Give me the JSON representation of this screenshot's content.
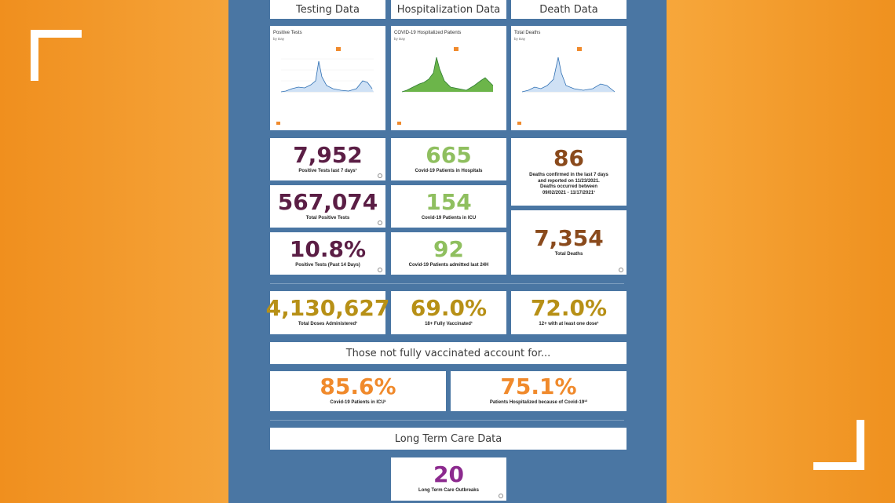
{
  "headers": {
    "testing": "Testing Data",
    "hospitalization": "Hospitalization Data",
    "death": "Death Data"
  },
  "charts": {
    "testing": {
      "title": "Positive Tests",
      "subtitle": "by Day"
    },
    "hospitalization": {
      "title": "COVID-19 Hospitalized Patients",
      "subtitle": "by Day"
    },
    "death": {
      "title": "Total Deaths",
      "subtitle": "by Day"
    }
  },
  "testing": {
    "positive_7d_value": "7,952",
    "positive_7d_label": "Positive Tests last 7 days¹",
    "total_positive_value": "567,074",
    "total_positive_label": "Total Positive Tests",
    "positivity_value": "10.8%",
    "positivity_label": "Positive Tests (Past 14 Days)"
  },
  "hospital": {
    "in_hospital_value": "665",
    "in_hospital_label": "Covid-19 Patients in Hospitals",
    "icu_value": "154",
    "icu_label": "Covid-19 Patients in ICU",
    "admitted_value": "92",
    "admitted_label": "Covid-19 Patients admitted last 24H"
  },
  "death": {
    "recent_value": "86",
    "recent_label_1": "Deaths confirmed in the last 7 days",
    "recent_label_2": "and reported on 11/23/2021.",
    "recent_label_3": "Deaths occurred between",
    "recent_label_4": "09/02/2021 - 11/17/2021¹",
    "total_value": "7,354",
    "total_label": "Total Deaths"
  },
  "vaccine": {
    "doses_value": "4,130,627",
    "doses_label": "Total Doses Administered¹",
    "full_value": "69.0%",
    "full_label": "18+ Fully Vaccinated¹",
    "one_dose_value": "72.0%",
    "one_dose_label": "12+ with at least one dose¹"
  },
  "unvaccinated": {
    "banner": "Those not fully vaccinated account for...",
    "icu_value": "85.6%",
    "icu_label": "Covid-19 Patients in ICU¹",
    "hosp_value": "75.1%",
    "hosp_label": "Patients Hospitalized because of Covid-19¹³"
  },
  "long_term_care": {
    "banner": "Long Term Care Data",
    "outbreaks_value": "20",
    "outbreaks_label": "Long Term Care Outbreaks"
  },
  "colors": {
    "testing": "#5b1e45",
    "hospital": "#8fbf5f",
    "death": "#8a4a1c",
    "vaccine": "#b79016",
    "unvax": "#f08a2c",
    "ltc": "#8c2a8e",
    "panel": "#4a76a3"
  }
}
